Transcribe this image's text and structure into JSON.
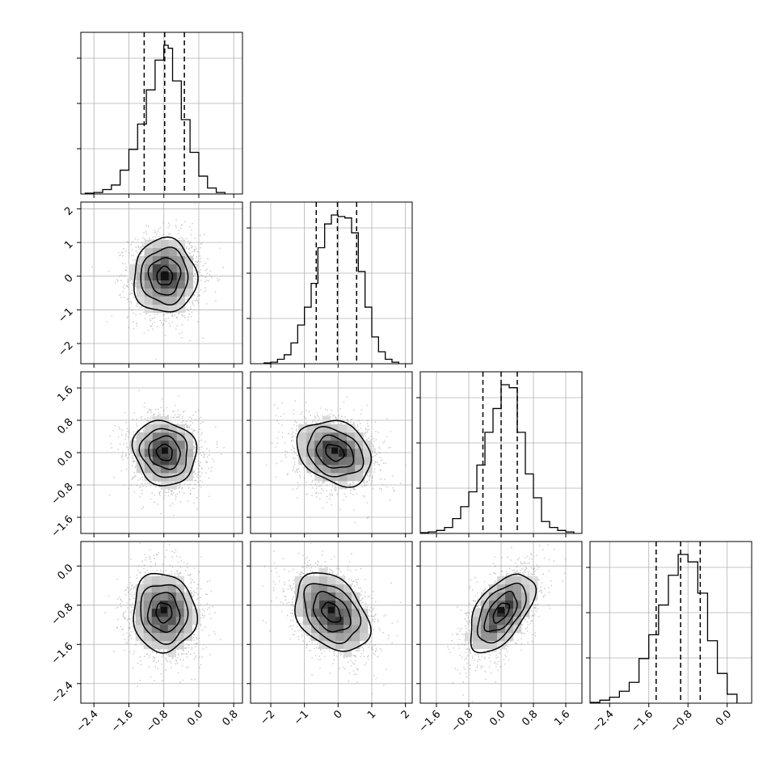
{
  "chart_data": {
    "type": "corner",
    "grid": true,
    "colors": {
      "hist": "#000000",
      "contour": "#000000",
      "points": "#808080",
      "grid": "#b0b0b0"
    },
    "params": [
      {
        "name": "",
        "range": [
          -2.7,
          1.0
        ],
        "ticks": [
          "-2.4",
          "-1.6",
          "-0.8",
          "0.0",
          "0.8"
        ],
        "quantiles": [
          -1.25,
          -0.78,
          -0.33
        ],
        "hist_bins": [
          -2.6,
          -2.4,
          -2.2,
          -2.0,
          -1.8,
          -1.6,
          -1.4,
          -1.2,
          -1.0,
          -0.8,
          -0.7,
          -0.6,
          -0.4,
          -0.2,
          0.0,
          0.2,
          0.4,
          0.6
        ],
        "hist_counts": [
          0.5,
          1,
          3,
          6,
          16,
          30,
          47,
          70,
          90,
          100,
          98,
          76,
          50,
          28,
          12,
          4,
          1
        ]
      },
      {
        "name": "",
        "range": [
          -2.6,
          2.2
        ],
        "ticks": [
          "-2",
          "-1",
          "0",
          "1",
          "2"
        ],
        "quantiles": [
          -0.65,
          -0.02,
          0.55
        ],
        "hist_bins": [
          -2.2,
          -2.0,
          -1.8,
          -1.6,
          -1.4,
          -1.2,
          -1.0,
          -0.8,
          -0.6,
          -0.4,
          -0.2,
          0.0,
          0.2,
          0.4,
          0.6,
          0.8,
          1.0,
          1.2,
          1.4,
          1.6,
          1.8
        ],
        "hist_counts": [
          0.5,
          1,
          3,
          6,
          14,
          26,
          38,
          54,
          78,
          94,
          100,
          99,
          98,
          88,
          62,
          38,
          18,
          8,
          3,
          1
        ]
      },
      {
        "name": "",
        "range": [
          -2.0,
          2.0
        ],
        "ticks": [
          "-1.6",
          "-0.8",
          "0.0",
          "0.8",
          "1.6"
        ],
        "quantiles": [
          -0.45,
          0.0,
          0.4
        ],
        "hist_bins": [
          -2.0,
          -1.8,
          -1.6,
          -1.4,
          -1.2,
          -1.0,
          -0.8,
          -0.6,
          -0.4,
          -0.2,
          0.0,
          0.2,
          0.4,
          0.6,
          0.8,
          1.0,
          1.2,
          1.4,
          1.6,
          1.8
        ],
        "hist_counts": [
          0.5,
          1,
          2,
          4,
          10,
          18,
          28,
          46,
          68,
          84,
          100,
          98,
          68,
          40,
          24,
          8,
          4,
          2,
          1
        ]
      },
      {
        "name": "",
        "range": [
          -2.8,
          0.5
        ],
        "ticks": [
          "-2.4",
          "-1.6",
          "-0.8",
          "0.0"
        ],
        "quantiles": [
          -1.45,
          -0.95,
          -0.55
        ],
        "hist_bins": [
          -2.8,
          -2.6,
          -2.4,
          -2.2,
          -2.0,
          -1.8,
          -1.6,
          -1.4,
          -1.2,
          -1.0,
          -0.8,
          -0.6,
          -0.4,
          -0.2,
          0.0,
          0.2
        ],
        "hist_counts": [
          0.5,
          2,
          4,
          8,
          14,
          30,
          46,
          66,
          86,
          100,
          95,
          74,
          42,
          20,
          6
        ]
      }
    ],
    "pairs": [
      {
        "x": 0,
        "y": 1,
        "cx": -0.78,
        "cy": 0.0,
        "sx": 0.36,
        "sy": 0.55,
        "rho": 0.0
      },
      {
        "x": 0,
        "y": 2,
        "cx": -0.78,
        "cy": 0.0,
        "sx": 0.36,
        "sy": 0.4,
        "rho": -0.1
      },
      {
        "x": 1,
        "y": 2,
        "cx": -0.1,
        "cy": 0.0,
        "sx": 0.55,
        "sy": 0.4,
        "rho": -0.25
      },
      {
        "x": 0,
        "y": 3,
        "cx": -0.8,
        "cy": -0.95,
        "sx": 0.36,
        "sy": 0.4,
        "rho": -0.05
      },
      {
        "x": 1,
        "y": 3,
        "cx": -0.2,
        "cy": -0.95,
        "sx": 0.55,
        "sy": 0.4,
        "rho": -0.35
      },
      {
        "x": 2,
        "y": 3,
        "cx": 0.0,
        "cy": -0.95,
        "sx": 0.4,
        "sy": 0.4,
        "rho": 0.55
      }
    ],
    "contour_levels_sigma": [
      0.5,
      1.0,
      1.5,
      2.0
    ]
  }
}
